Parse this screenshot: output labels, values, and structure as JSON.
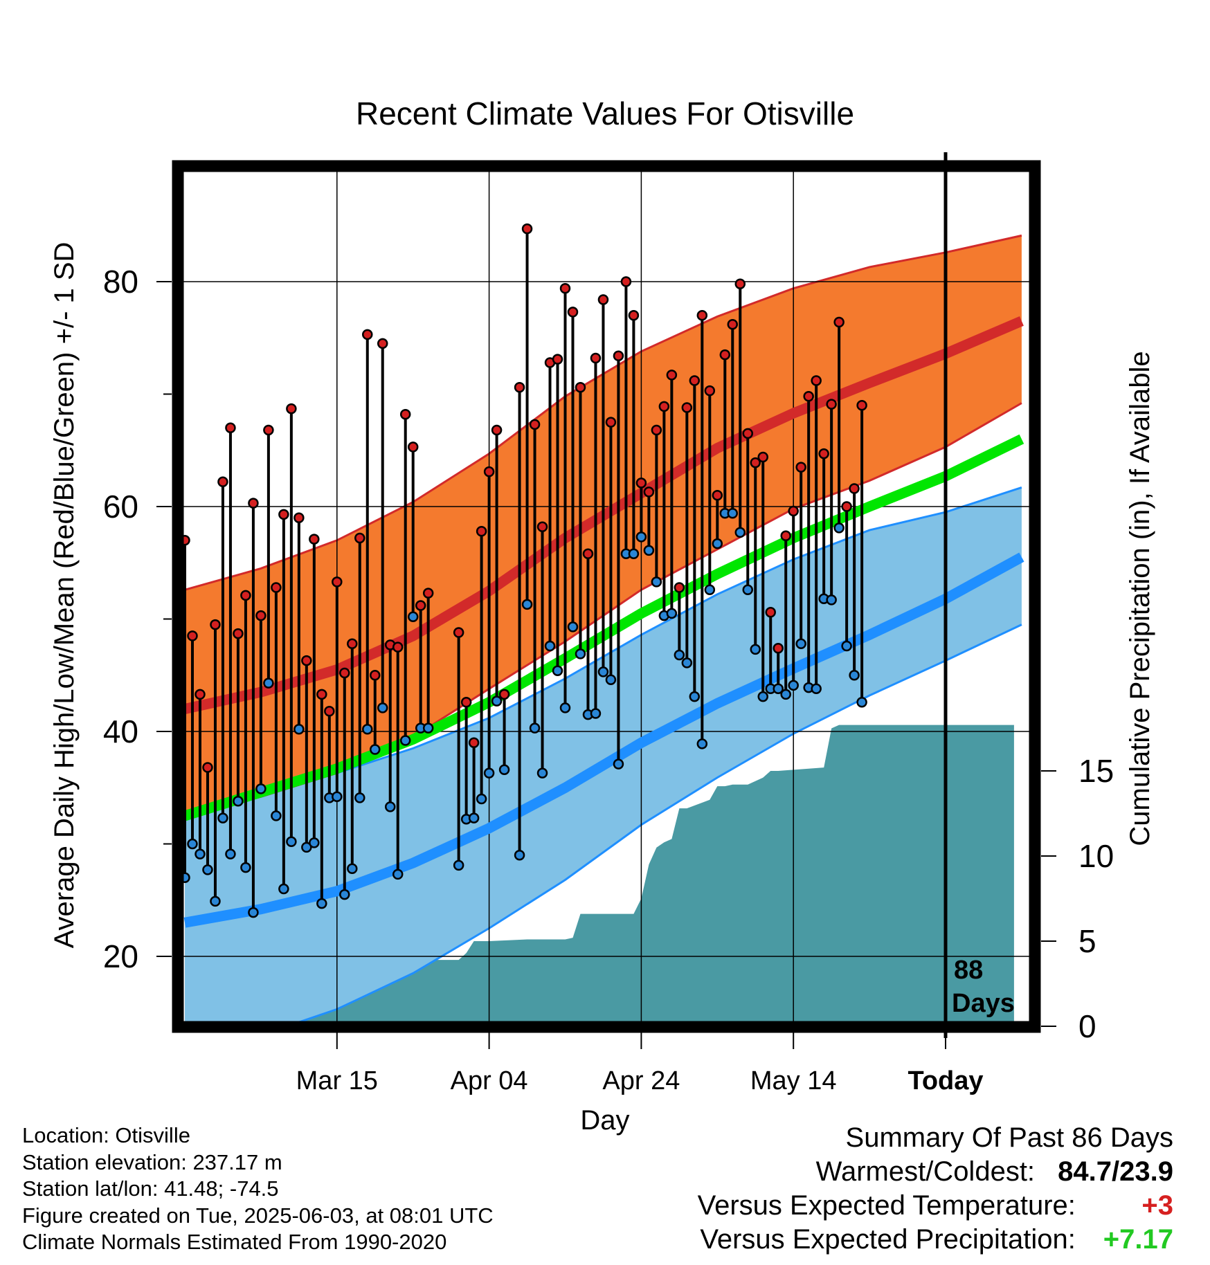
{
  "chart_data": {
    "type": "line",
    "title": "Recent Climate Values For Otisville",
    "xlabel": "Day",
    "ylabel": "Average Daily High/Low/Mean (Red/Blue/Green) +/- 1 SD",
    "y2label": "Cumulative Precipitation (in), If Available",
    "xlim": [
      -10,
      90
    ],
    "ylim": [
      14,
      90
    ],
    "y2lim": [
      0,
      18
    ],
    "x_ticks": [
      {
        "x": 10,
        "label": "Mar 15"
      },
      {
        "x": 30,
        "label": "Apr 04"
      },
      {
        "x": 50,
        "label": "Apr 24"
      },
      {
        "x": 70,
        "label": "May 14"
      },
      {
        "x": 90,
        "label": "Today"
      }
    ],
    "y_ticks": [
      20,
      40,
      60,
      80
    ],
    "y_minor_ticks": [
      30,
      50,
      70
    ],
    "y2_ticks": [
      0,
      5,
      10,
      15
    ],
    "grid": true,
    "today_marker": {
      "x": 90,
      "label_line1": "88",
      "label_line2": "Days"
    },
    "colors": {
      "high_band": "#f47a2e",
      "high_line": "#d22a2a",
      "mean_line": "#00e600",
      "low_band": "#80c1e6",
      "low_line": "#1f8fff",
      "precip": "#4a9aa3",
      "high_dot": "#d42020",
      "low_dot": "#2a86d6"
    },
    "normals": {
      "x": [
        -10,
        0,
        10,
        20,
        30,
        40,
        50,
        60,
        70,
        80,
        90,
        100
      ],
      "high_mean": [
        42,
        43.5,
        45.5,
        48.5,
        52.5,
        57.2,
        61.2,
        65.2,
        68.3,
        71,
        73.6,
        76.5
      ],
      "high_upper": [
        52.6,
        54.5,
        57,
        60.4,
        64.7,
        69.8,
        73.8,
        76.9,
        79.4,
        81.3,
        82.6,
        84.1
      ],
      "high_lower": [
        32.5,
        34.2,
        36.3,
        39.5,
        43.8,
        48,
        52.6,
        56.2,
        59.8,
        62.3,
        65.3,
        69.2
      ],
      "mean": [
        32.5,
        34.6,
        36.7,
        39.3,
        42.6,
        46.5,
        50.5,
        54,
        57.2,
        60,
        62.7,
        66
      ],
      "low_mean": [
        23,
        24.2,
        25.8,
        28.3,
        31.4,
        35,
        39,
        42.5,
        45.6,
        48.6,
        51.8,
        55.5
      ],
      "low_upper": [
        32.5,
        34.2,
        36.3,
        38.5,
        41.2,
        44.7,
        48.6,
        52.2,
        55.3,
        57.9,
        59.5,
        61.7
      ],
      "low_lower": [
        13,
        13,
        15.3,
        18.5,
        22.5,
        26.8,
        31.7,
        35.9,
        39.8,
        43.2,
        46.3,
        49.5
      ]
    },
    "daily": [
      {
        "x": -10,
        "high": 57,
        "low": 27
      },
      {
        "x": -9,
        "high": 48.5,
        "low": 30
      },
      {
        "x": -8,
        "high": 43.3,
        "low": 29.1
      },
      {
        "x": -7,
        "high": 36.8,
        "low": 27.7
      },
      {
        "x": -6,
        "high": 49.5,
        "low": 24.9
      },
      {
        "x": -5,
        "high": 62.2,
        "low": 32.3
      },
      {
        "x": -4,
        "high": 67,
        "low": 29.1
      },
      {
        "x": -3,
        "high": 48.7,
        "low": 33.8
      },
      {
        "x": -2,
        "high": 52.1,
        "low": 27.9
      },
      {
        "x": -1,
        "high": 60.3,
        "low": 23.9
      },
      {
        "x": 0,
        "high": 50.3,
        "low": 34.9
      },
      {
        "x": 1,
        "high": 66.8,
        "low": 44.3
      },
      {
        "x": 2,
        "high": 52.8,
        "low": 32.5
      },
      {
        "x": 3,
        "high": 59.3,
        "low": 26
      },
      {
        "x": 4,
        "high": 68.7,
        "low": 30.2
      },
      {
        "x": 5,
        "high": 59,
        "low": 40.2
      },
      {
        "x": 6,
        "high": 46.3,
        "low": 29.7
      },
      {
        "x": 7,
        "high": 57.1,
        "low": 30.1
      },
      {
        "x": 8,
        "high": 43.3,
        "low": 24.7
      },
      {
        "x": 9,
        "high": 41.8,
        "low": 34.1
      },
      {
        "x": 10,
        "high": 53.3,
        "low": 34.2
      },
      {
        "x": 11,
        "high": 45.2,
        "low": 25.5
      },
      {
        "x": 12,
        "high": 47.8,
        "low": 27.8
      },
      {
        "x": 13,
        "high": 57.2,
        "low": 34.1
      },
      {
        "x": 14,
        "high": 75.3,
        "low": 40.2
      },
      {
        "x": 15,
        "high": 45,
        "low": 38.4
      },
      {
        "x": 16,
        "high": 74.5,
        "low": 42.1
      },
      {
        "x": 17,
        "high": 47.7,
        "low": 33.3
      },
      {
        "x": 18,
        "high": 47.5,
        "low": 27.3
      },
      {
        "x": 19,
        "high": 68.2,
        "low": 39.2
      },
      {
        "x": 20,
        "high": 65.3,
        "low": 50.2
      },
      {
        "x": 21,
        "high": 51.2,
        "low": 40.3
      },
      {
        "x": 22,
        "high": 52.3,
        "low": 40.3
      },
      {
        "x": 26,
        "high": 48.8,
        "low": 28.1
      },
      {
        "x": 27,
        "high": 42.6,
        "low": 32.2
      },
      {
        "x": 28,
        "high": 39,
        "low": 32.3
      },
      {
        "x": 29,
        "high": 57.8,
        "low": 34
      },
      {
        "x": 30,
        "high": 63.1,
        "low": 36.3
      },
      {
        "x": 31,
        "high": 66.8,
        "low": 42.7
      },
      {
        "x": 32,
        "high": 43.3,
        "low": 36.6
      },
      {
        "x": 34,
        "high": 70.6,
        "low": 29.0
      },
      {
        "x": 35,
        "high": 84.7,
        "low": 51.3
      },
      {
        "x": 36,
        "high": 67.3,
        "low": 40.3
      },
      {
        "x": 37,
        "high": 58.2,
        "low": 36.3
      },
      {
        "x": 38,
        "high": 72.8,
        "low": 47.6
      },
      {
        "x": 39,
        "high": 73.1,
        "low": 45.4
      },
      {
        "x": 40,
        "high": 79.4,
        "low": 42.1
      },
      {
        "x": 41,
        "high": 77.3,
        "low": 49.3
      },
      {
        "x": 42,
        "high": 70.6,
        "low": 46.9
      },
      {
        "x": 43,
        "high": 55.8,
        "low": 41.5
      },
      {
        "x": 44,
        "high": 73.2,
        "low": 41.6
      },
      {
        "x": 45,
        "high": 78.4,
        "low": 45.3
      },
      {
        "x": 46,
        "high": 67.5,
        "low": 44.6
      },
      {
        "x": 47,
        "high": 73.4,
        "low": 37.1
      },
      {
        "x": 48,
        "high": 80,
        "low": 55.8
      },
      {
        "x": 49,
        "high": 77,
        "low": 55.8
      },
      {
        "x": 50,
        "high": 62.1,
        "low": 57.3
      },
      {
        "x": 51,
        "high": 61.3,
        "low": 56.1
      },
      {
        "x": 52,
        "high": 66.8,
        "low": 53.3
      },
      {
        "x": 53,
        "high": 68.9,
        "low": 50.3
      },
      {
        "x": 54,
        "high": 71.7,
        "low": 50.5
      },
      {
        "x": 55,
        "high": 52.8,
        "low": 46.8
      },
      {
        "x": 56,
        "high": 68.8,
        "low": 46.1
      },
      {
        "x": 57,
        "high": 71.2,
        "low": 43.1
      },
      {
        "x": 58,
        "high": 77,
        "low": 38.9
      },
      {
        "x": 59,
        "high": 70.3,
        "low": 52.6
      },
      {
        "x": 60,
        "high": 61,
        "low": 56.7
      },
      {
        "x": 61,
        "high": 73.5,
        "low": 59.4
      },
      {
        "x": 62,
        "high": 76.2,
        "low": 59.4
      },
      {
        "x": 63,
        "high": 79.8,
        "low": 57.7
      },
      {
        "x": 64,
        "high": 66.5,
        "low": 52.6
      },
      {
        "x": 65,
        "high": 63.9,
        "low": 47.3
      },
      {
        "x": 66,
        "high": 64.4,
        "low": 43.1
      },
      {
        "x": 67,
        "high": 50.6,
        "low": 43.8
      },
      {
        "x": 68,
        "high": 47.4,
        "low": 43.8
      },
      {
        "x": 69,
        "high": 57.4,
        "low": 43.3
      },
      {
        "x": 70,
        "high": 59.6,
        "low": 44.1
      },
      {
        "x": 71,
        "high": 63.5,
        "low": 47.8
      },
      {
        "x": 72,
        "high": 69.8,
        "low": 43.9
      },
      {
        "x": 73,
        "high": 71.2,
        "low": 43.8
      },
      {
        "x": 74,
        "high": 64.7,
        "low": 51.8
      },
      {
        "x": 75,
        "high": 69.1,
        "low": 51.7
      },
      {
        "x": 76,
        "high": 76.4,
        "low": 58.1
      },
      {
        "x": 77,
        "high": 60,
        "low": 47.6
      },
      {
        "x": 78,
        "high": 61.6,
        "low": 45
      },
      {
        "x": 79,
        "high": 69,
        "low": 42.6
      }
    ],
    "precip_cumulative": {
      "x": [
        -10,
        0,
        1,
        2,
        3,
        4,
        5,
        9,
        12,
        14,
        15,
        16,
        18,
        19,
        20,
        22,
        26,
        27,
        28,
        30,
        35,
        40,
        41,
        42,
        49,
        50,
        51,
        52,
        53,
        54,
        55,
        56,
        59,
        60,
        61,
        62,
        64,
        66,
        67,
        68,
        74,
        75,
        76,
        90,
        99
      ],
      "values": [
        1.1,
        1.1,
        1.6,
        2.0,
        2.0,
        2.3,
        2.3,
        2.4,
        2.4,
        2.5,
        2.5,
        3.4,
        3.4,
        3.5,
        3.6,
        3.9,
        3.9,
        4.3,
        5.0,
        5.0,
        5.1,
        5.1,
        5.2,
        6.6,
        6.6,
        7.5,
        9.5,
        10.5,
        10.8,
        11.0,
        12.8,
        12.8,
        13.3,
        14.1,
        14.1,
        14.2,
        14.2,
        14.6,
        15.0,
        15.0,
        15.2,
        17.5,
        17.7,
        17.7,
        17.7
      ]
    }
  },
  "info": {
    "location": "Location: Otisville",
    "elevation": "Station elevation: 237.17 m",
    "latlon": "Station lat/lon: 41.48; -74.5",
    "created": "Figure created on Tue, 2025-06-03, at 08:01 UTC",
    "normals": "Climate Normals Estimated From 1990-2020"
  },
  "summary": {
    "heading": "Summary Of Past 86 Days",
    "warm_cold_label": "Warmest/Coldest:",
    "warm_cold_value": "84.7/23.9",
    "temp_label": "Versus Expected Temperature:",
    "temp_value": "+3",
    "precip_label": "Versus Expected Precipitation:",
    "precip_value": "+7.17"
  }
}
